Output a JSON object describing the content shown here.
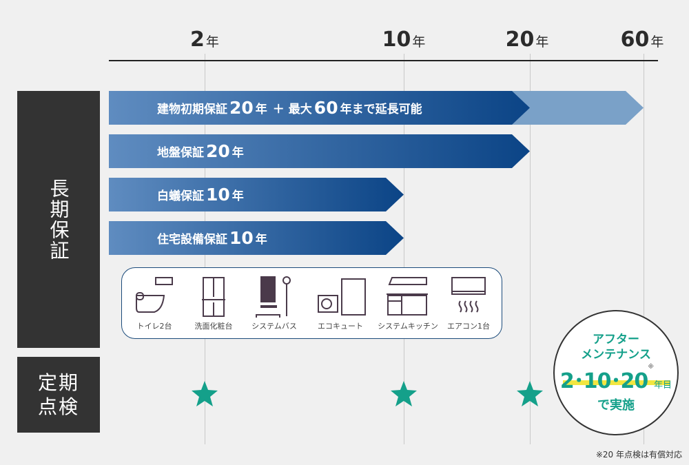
{
  "timeline": {
    "years": [
      {
        "num": "2",
        "unit": "年"
      },
      {
        "num": "10",
        "unit": "年"
      },
      {
        "num": "20",
        "unit": "年"
      },
      {
        "num": "60",
        "unit": "年"
      }
    ]
  },
  "sections": {
    "warranty": "長期保証",
    "inspection": "定期点検"
  },
  "bars": [
    {
      "pre": "建物初期保証",
      "num": "20",
      "unit": "年",
      "plus": "＋",
      "pre2": "最大",
      "num2": "60",
      "post": "年まで延長可能"
    },
    {
      "pre": "地盤保証",
      "num": "20",
      "unit": "年"
    },
    {
      "pre": "白蟻保証",
      "num": "10",
      "unit": "年"
    },
    {
      "pre": "住宅設備保証",
      "num": "10",
      "unit": "年"
    }
  ],
  "equipment": [
    {
      "label": "トイレ2台",
      "icon": "toilet-icon"
    },
    {
      "label": "洗面化粧台",
      "icon": "vanity-icon"
    },
    {
      "label": "システムバス",
      "icon": "bath-icon"
    },
    {
      "label": "エコキュート",
      "icon": "water-heater-icon"
    },
    {
      "label": "システムキッチン",
      "icon": "kitchen-icon"
    },
    {
      "label": "エアコン1台",
      "icon": "air-conditioner-icon"
    }
  ],
  "maintenance": {
    "line1": "アフター",
    "line2": "メンテナンス",
    "years": "2･10･20",
    "mark": "※",
    "suffix": "年目",
    "line4": "で実施"
  },
  "footnote": "※20 年点検は有償対応",
  "colors": {
    "bar_light": "#5f8cc0",
    "bar_dark": "#0b4486",
    "accent": "#14a08a",
    "highlight": "#f2e640",
    "panel": "#333333"
  }
}
